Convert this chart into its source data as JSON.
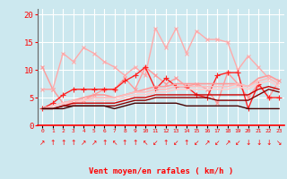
{
  "xlabel": "Vent moyen/en rafales ( km/h )",
  "background_color": "#cce8ef",
  "grid_color": "#ffffff",
  "x": [
    0,
    1,
    2,
    3,
    4,
    5,
    6,
    7,
    8,
    9,
    10,
    11,
    12,
    13,
    14,
    15,
    16,
    17,
    18,
    19,
    20,
    21,
    22,
    23
  ],
  "ylim": [
    0,
    21
  ],
  "xlim": [
    -0.5,
    23.5
  ],
  "lines": [
    {
      "y": [
        10.5,
        6.5,
        4.0,
        4.0,
        4.5,
        5.5,
        6.5,
        6.5,
        8.5,
        6.5,
        10.5,
        9.0,
        7.5,
        8.5,
        7.0,
        7.5,
        6.5,
        4.0,
        9.5,
        7.5,
        5.0,
        7.5,
        5.0,
        8.0
      ],
      "color": "#ff9999",
      "lw": 1.0,
      "marker": "x",
      "ms": 3.5
    },
    {
      "y": [
        6.5,
        6.5,
        13.0,
        11.5,
        14.0,
        13.0,
        11.5,
        10.5,
        9.0,
        10.5,
        9.0,
        17.5,
        14.0,
        17.5,
        13.0,
        17.0,
        15.5,
        15.5,
        15.0,
        10.0,
        12.5,
        10.5,
        8.5,
        null
      ],
      "color": "#ffaaaa",
      "lw": 1.0,
      "marker": "x",
      "ms": 3.0
    },
    {
      "y": [
        3.0,
        4.0,
        5.5,
        6.5,
        6.5,
        6.5,
        6.5,
        6.5,
        8.0,
        9.0,
        10.5,
        6.5,
        8.5,
        7.0,
        7.0,
        5.5,
        5.0,
        9.0,
        9.5,
        9.5,
        3.0,
        7.5,
        5.0,
        5.0
      ],
      "color": "#ff2222",
      "lw": 1.0,
      "marker": "+",
      "ms": 4
    },
    {
      "y": [
        3.0,
        3.5,
        4.0,
        4.5,
        5.0,
        5.5,
        5.5,
        5.0,
        5.5,
        6.0,
        6.5,
        7.0,
        7.0,
        7.5,
        7.5,
        7.5,
        7.5,
        7.5,
        7.5,
        7.5,
        7.0,
        8.5,
        9.0,
        8.0
      ],
      "color": "#ff9999",
      "lw": 1.2,
      "marker": null,
      "ms": 0
    },
    {
      "y": [
        3.0,
        3.5,
        4.0,
        4.5,
        4.5,
        5.0,
        5.0,
        5.0,
        5.5,
        6.0,
        6.0,
        6.5,
        6.5,
        7.0,
        7.0,
        7.0,
        7.0,
        7.0,
        7.0,
        7.5,
        7.0,
        8.0,
        8.5,
        7.5
      ],
      "color": "#ffbbbb",
      "lw": 1.2,
      "marker": null,
      "ms": 0
    },
    {
      "y": [
        3.0,
        3.5,
        4.0,
        4.0,
        4.5,
        4.5,
        4.5,
        4.5,
        5.0,
        5.5,
        5.5,
        6.0,
        6.0,
        6.5,
        6.5,
        6.5,
        6.5,
        6.5,
        6.5,
        7.0,
        6.5,
        7.5,
        8.0,
        7.0
      ],
      "color": "#ffcccc",
      "lw": 1.2,
      "marker": null,
      "ms": 0
    },
    {
      "y": [
        3.0,
        3.0,
        3.5,
        4.0,
        4.0,
        4.0,
        4.0,
        4.0,
        4.5,
        5.0,
        5.0,
        5.5,
        5.5,
        5.5,
        5.5,
        5.5,
        5.5,
        5.5,
        5.5,
        5.5,
        5.5,
        6.5,
        7.0,
        6.5
      ],
      "color": "#cc0000",
      "lw": 1.0,
      "marker": null,
      "ms": 0
    },
    {
      "y": [
        3.0,
        3.0,
        3.5,
        3.5,
        3.5,
        3.5,
        3.5,
        3.5,
        4.0,
        4.5,
        4.5,
        5.0,
        5.0,
        5.0,
        5.0,
        5.0,
        5.0,
        4.5,
        4.5,
        4.5,
        4.5,
        5.5,
        6.5,
        6.0
      ],
      "color": "#880000",
      "lw": 1.0,
      "marker": null,
      "ms": 0
    },
    {
      "y": [
        3.0,
        3.0,
        3.0,
        3.5,
        3.5,
        3.5,
        3.5,
        3.0,
        3.5,
        4.0,
        4.0,
        4.0,
        4.0,
        4.0,
        3.5,
        3.5,
        3.5,
        3.5,
        3.5,
        3.5,
        3.0,
        3.0,
        3.0,
        3.0
      ],
      "color": "#440000",
      "lw": 1.0,
      "marker": null,
      "ms": 0
    }
  ],
  "wind_arrows": [
    "↗",
    "↑",
    "↑",
    "↑",
    "↗",
    "↗",
    "↑",
    "↖",
    "↑",
    "↑",
    "↖",
    "↙",
    "↑",
    "↙",
    "↑",
    "↙",
    "↗",
    "↙",
    "↗",
    "↙",
    "↓",
    "↓",
    "↓",
    "↘"
  ],
  "yticks": [
    0,
    5,
    10,
    15,
    20
  ],
  "xtick_labels": [
    "0",
    "1",
    "2",
    "3",
    "4",
    "5",
    "6",
    "7",
    "8",
    "9",
    "10",
    "11",
    "12",
    "13",
    "14",
    "15",
    "16",
    "17",
    "18",
    "19",
    "20",
    "21",
    "22",
    "23"
  ]
}
